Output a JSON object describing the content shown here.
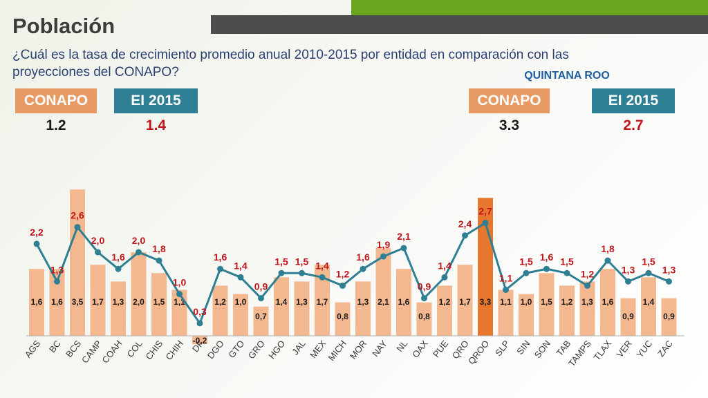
{
  "header": {
    "title": "Población",
    "subtitle": "¿Cuál es la tasa de crecimiento promedio anual 2010-2015 por entidad en comparación con las proyecciones del CONAPO?"
  },
  "national": {
    "conapo_label": "CONAPO",
    "conapo_value": "1.2",
    "ei_label": "EI 2015",
    "ei_value": "1.4"
  },
  "quintana_roo": {
    "heading": "QUINTANA ROO",
    "conapo_label": "CONAPO",
    "conapo_value": "3.3",
    "ei_label": "EI 2015",
    "ei_value": "2.7"
  },
  "colors": {
    "bar": "#f4b890",
    "bar_highlight": "#e8772e",
    "line": "#2e7f93",
    "bar_label": "#1a1a1a",
    "line_label": "#c0151b",
    "conapo_box": "#e79a63",
    "ei_box": "#2e7f93"
  },
  "chart_data": {
    "type": "bar",
    "categories": [
      "AGS",
      "BC",
      "BCS",
      "CAMP",
      "COAH",
      "COL",
      "CHIS",
      "CHIH",
      "DF",
      "DGO",
      "GTO",
      "GRO",
      "HGO",
      "JAL",
      "MEX",
      "MICH",
      "MOR",
      "NAY",
      "NL",
      "OAX",
      "PUE",
      "QRO",
      "QROO",
      "SLP",
      "SIN",
      "SON",
      "TAB",
      "TAMPS",
      "TLAX",
      "VER",
      "YUC",
      "ZAC"
    ],
    "series": [
      {
        "chart": "bar",
        "values": [
          1.6,
          1.6,
          3.5,
          1.7,
          1.3,
          2.0,
          1.5,
          1.1,
          -0.2,
          1.2,
          1.0,
          0.7,
          1.4,
          1.3,
          1.7,
          0.8,
          1.3,
          2.1,
          1.6,
          0.8,
          1.2,
          1.7,
          3.3,
          1.1,
          1.0,
          1.5,
          1.2,
          1.3,
          1.6,
          0.9,
          1.4,
          0.9
        ],
        "labels": [
          "1,6",
          "1,6",
          "3,5",
          "1,7",
          "1,3",
          "2,0",
          "1,5",
          "1,1",
          "-0,2",
          "1,2",
          "1,0",
          "0,7",
          "1,4",
          "1,3",
          "1,7",
          "0,8",
          "1,3",
          "2,1",
          "1,6",
          "0,8",
          "1,2",
          "1,7",
          "3,3",
          "1,1",
          "1,0",
          "1,5",
          "1,2",
          "1,3",
          "1,6",
          "0,9",
          "1,4",
          "0,9"
        ]
      },
      {
        "chart": "line",
        "values": [
          2.2,
          1.3,
          2.6,
          2.0,
          1.6,
          2.0,
          1.8,
          1.0,
          0.3,
          1.6,
          1.4,
          0.9,
          1.5,
          1.5,
          1.4,
          1.2,
          1.6,
          1.9,
          2.1,
          0.9,
          1.4,
          2.4,
          2.7,
          1.1,
          1.5,
          1.6,
          1.5,
          1.2,
          1.8,
          1.3,
          1.5,
          1.3
        ],
        "labels": [
          "2,2",
          "1,3",
          "2,6",
          "2,0",
          "1,6",
          "2,0",
          "1,8",
          "1,0",
          "0,3",
          "1,6",
          "1,4",
          "0,9",
          "1,5",
          "1,5",
          "1,4",
          "1,2",
          "1,6",
          "1,9",
          "2,1",
          "0,9",
          "1,4",
          "2,4",
          "2,7",
          "1,1",
          "1,5",
          "1,6",
          "1,5",
          "1,2",
          "1,8",
          "1,3",
          "1,5",
          "1,3"
        ]
      }
    ],
    "highlight_category": "QROO",
    "ylim": [
      -0.2,
      3.6
    ],
    "grid": false,
    "legend": "none"
  }
}
